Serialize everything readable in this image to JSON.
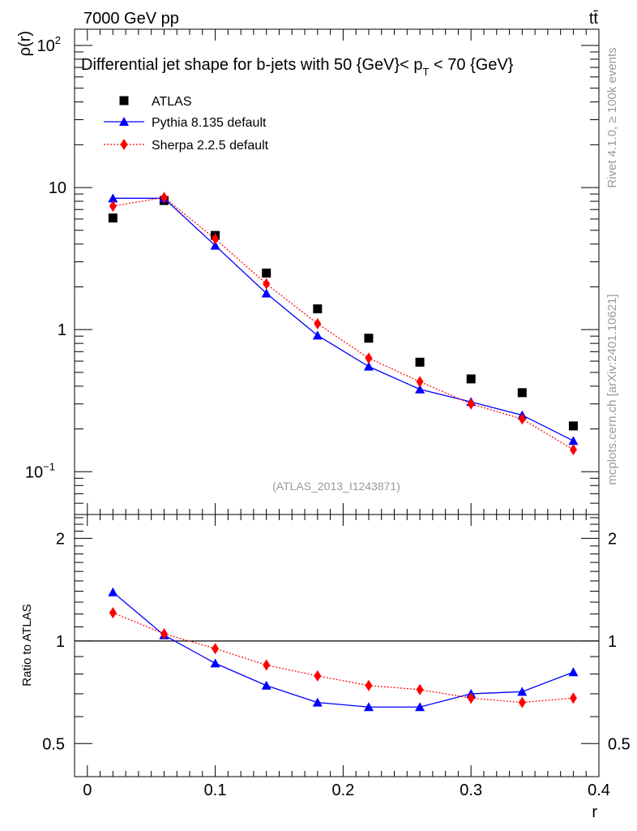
{
  "header": {
    "energy_label": "7000 GeV pp",
    "process_label": "tt̄"
  },
  "side_labels": {
    "rivet": "Rivet 4.1.0, ≥ 100k events",
    "mcplots": "mcplots.cern.ch [arXiv:2401.10621]"
  },
  "chart_data": {
    "type": "scatter",
    "title": "Differential jet shape for b-jets with 50 {GeV}< p_T < 70 {GeV}",
    "title_parts": {
      "before": "Differential jet shape for b-jets with 50 {GeV}< p",
      "sub": "T",
      "after": " < 70 {GeV}"
    },
    "analysis_tag": "(ATLAS_2013_I1243871)",
    "xlabel": "r",
    "ylabel": "ρ(r)",
    "ratio_ylabel": "Ratio to ATLAS",
    "xlim": [
      -0.01,
      0.4
    ],
    "ylim": [
      0.05,
      130
    ],
    "yscale": "log",
    "ratio_ylim": [
      0.4,
      2.35
    ],
    "ratio_yscale": "log",
    "x_ticks": [
      "0",
      "0.1",
      "0.2",
      "0.3",
      "0.4"
    ],
    "x_tick_values": [
      0,
      0.1,
      0.2,
      0.3,
      0.4
    ],
    "y_ticks": [
      {
        "value": 100,
        "base": "10",
        "exp": "2"
      },
      {
        "value": 10,
        "base": "10",
        "exp": ""
      },
      {
        "value": 1,
        "base": "1",
        "exp": ""
      },
      {
        "value": 0.1,
        "base": "10",
        "exp": "−1"
      }
    ],
    "ratio_y_ticks": [
      {
        "value": 2,
        "label": "2"
      },
      {
        "value": 1,
        "label": "1"
      },
      {
        "value": 0.5,
        "label": "0.5"
      }
    ],
    "x": [
      0.02,
      0.06,
      0.1,
      0.14,
      0.18,
      0.22,
      0.26,
      0.3,
      0.34,
      0.38
    ],
    "series": [
      {
        "name": "ATLAS",
        "style": "data",
        "color": "#000000",
        "values": [
          6.1,
          8.1,
          4.6,
          2.5,
          1.4,
          0.87,
          0.59,
          0.45,
          0.36,
          0.21
        ]
      },
      {
        "name": "Pythia 8.135 default",
        "style": "line-triangle",
        "color": "#0000ff",
        "values": [
          8.4,
          8.4,
          3.9,
          1.8,
          0.91,
          0.55,
          0.38,
          0.31,
          0.25,
          0.165
        ]
      },
      {
        "name": "Sherpa 2.2.5 default",
        "style": "dotted-diamond",
        "color": "#ff0000",
        "values": [
          7.4,
          8.5,
          4.35,
          2.1,
          1.1,
          0.63,
          0.43,
          0.3,
          0.235,
          0.143
        ]
      }
    ],
    "ratio_series": [
      {
        "name": "Pythia 8.135 default",
        "color": "#0000ff",
        "values": [
          1.39,
          1.04,
          0.86,
          0.74,
          0.66,
          0.64,
          0.64,
          0.7,
          0.71,
          0.81
        ]
      },
      {
        "name": "Sherpa 2.2.5 default",
        "color": "#ff0000",
        "values": [
          1.21,
          1.05,
          0.95,
          0.85,
          0.79,
          0.74,
          0.72,
          0.68,
          0.66,
          0.68
        ]
      }
    ]
  }
}
